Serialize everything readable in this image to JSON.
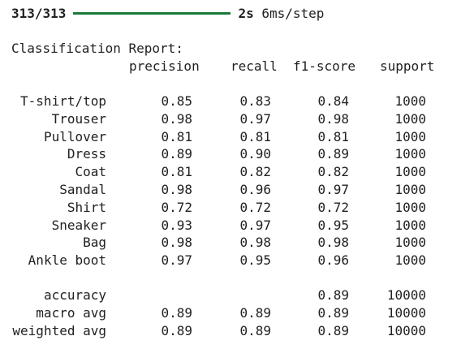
{
  "progress": {
    "steps": "313/313",
    "fraction": 1.0,
    "elapsed": "2s",
    "per_step": "6ms/step"
  },
  "report": {
    "title": "Classification Report:",
    "headers": [
      "precision",
      "recall",
      "f1-score",
      "support"
    ],
    "rows": [
      {
        "label": "T-shirt/top",
        "precision": "0.85",
        "recall": "0.83",
        "f1": "0.84",
        "support": "1000"
      },
      {
        "label": "Trouser",
        "precision": "0.98",
        "recall": "0.97",
        "f1": "0.98",
        "support": "1000"
      },
      {
        "label": "Pullover",
        "precision": "0.81",
        "recall": "0.81",
        "f1": "0.81",
        "support": "1000"
      },
      {
        "label": "Dress",
        "precision": "0.89",
        "recall": "0.90",
        "f1": "0.89",
        "support": "1000"
      },
      {
        "label": "Coat",
        "precision": "0.81",
        "recall": "0.82",
        "f1": "0.82",
        "support": "1000"
      },
      {
        "label": "Sandal",
        "precision": "0.98",
        "recall": "0.96",
        "f1": "0.97",
        "support": "1000"
      },
      {
        "label": "Shirt",
        "precision": "0.72",
        "recall": "0.72",
        "f1": "0.72",
        "support": "1000"
      },
      {
        "label": "Sneaker",
        "precision": "0.93",
        "recall": "0.97",
        "f1": "0.95",
        "support": "1000"
      },
      {
        "label": "Bag",
        "precision": "0.98",
        "recall": "0.98",
        "f1": "0.98",
        "support": "1000"
      },
      {
        "label": "Ankle boot",
        "precision": "0.97",
        "recall": "0.95",
        "f1": "0.96",
        "support": "1000"
      }
    ],
    "summary": [
      {
        "label": "accuracy",
        "precision": "",
        "recall": "",
        "f1": "0.89",
        "support": "10000"
      },
      {
        "label": "macro avg",
        "precision": "0.89",
        "recall": "0.89",
        "f1": "0.89",
        "support": "10000"
      },
      {
        "label": "weighted avg",
        "precision": "0.89",
        "recall": "0.89",
        "f1": "0.89",
        "support": "10000"
      }
    ]
  },
  "colors": {
    "progress_bar": "#1b7a3a",
    "text": "#212121"
  }
}
